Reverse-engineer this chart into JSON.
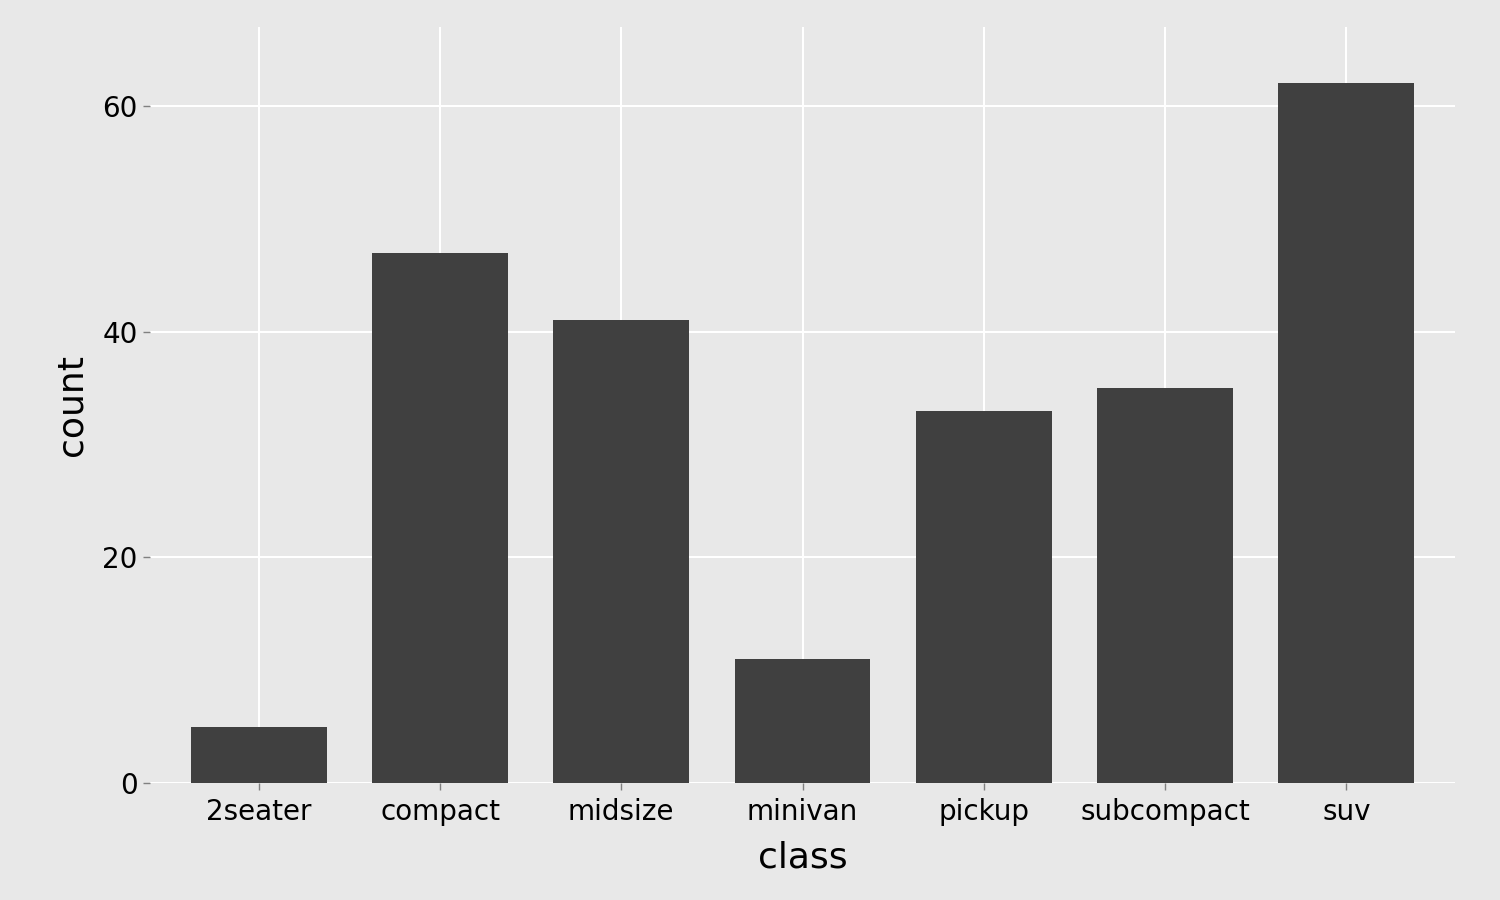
{
  "categories": [
    "2seater",
    "compact",
    "midsize",
    "minivan",
    "pickup",
    "subcompact",
    "suv"
  ],
  "values": [
    5,
    47,
    41,
    11,
    33,
    35,
    62
  ],
  "bar_color": "#404040",
  "background_color": "#e8e8e8",
  "panel_background": "#e8e8e8",
  "grid_color": "#ffffff",
  "xlabel": "class",
  "ylabel": "count",
  "xlabel_fontsize": 26,
  "ylabel_fontsize": 26,
  "tick_fontsize": 20,
  "ylim": [
    0,
    67
  ],
  "yticks": [
    0,
    20,
    40,
    60
  ],
  "bar_width": 0.75,
  "title": ""
}
